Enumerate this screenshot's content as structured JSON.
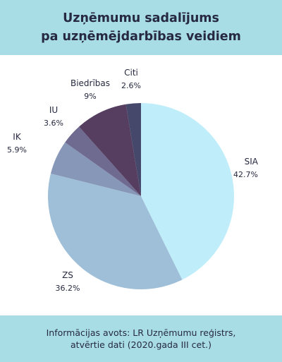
{
  "header": {
    "title_line1": "Uzņēmumu sadalījums",
    "title_line2": "pa uzņēmējdarbības veidiem"
  },
  "footer": {
    "line1": "Informācijas avots: LR Uzņēmumu reģistrs,",
    "line2": "atvērtie dati (2020.gada III cet.)"
  },
  "colors": {
    "header_bg": "#a8dde6",
    "SIA": "#c0edfa",
    "ZS": "#9fbfd8",
    "IK": "#8797b7",
    "IU": "#6e6a90",
    "Biedrības": "#553e5f",
    "Citi": "#45486b"
  },
  "chart_data": {
    "type": "pie",
    "title": "Uzņēmumu sadalījums pa uzņēmējdarbības veidiem",
    "start": "12 o'clock, clockwise",
    "slices": [
      {
        "label": "SIA",
        "value": 42.7,
        "display": "42.7%"
      },
      {
        "label": "ZS",
        "value": 36.2,
        "display": "36.2%"
      },
      {
        "label": "IK",
        "value": 5.9,
        "display": "5.9%"
      },
      {
        "label": "IU",
        "value": 3.6,
        "display": "3.6%"
      },
      {
        "label": "Biedrības",
        "value": 9.0,
        "display": "9%"
      },
      {
        "label": "Citi",
        "value": 2.6,
        "display": "2.6%"
      }
    ]
  }
}
